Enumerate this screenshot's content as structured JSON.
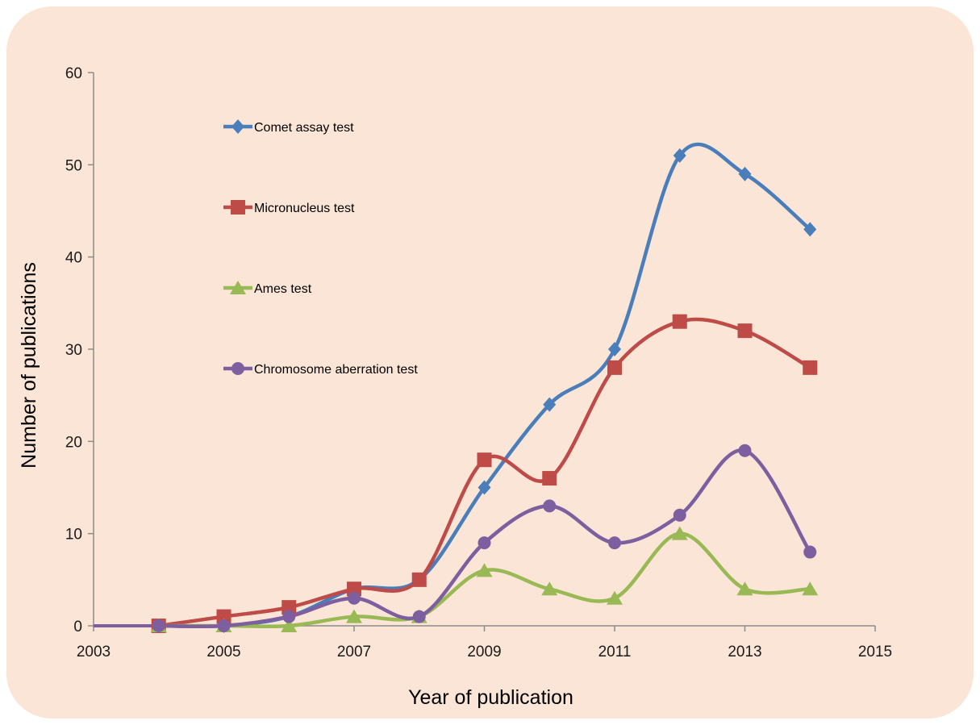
{
  "chart_data": {
    "type": "line",
    "smooth": true,
    "x": [
      2004,
      2005,
      2006,
      2007,
      2008,
      2009,
      2010,
      2011,
      2012,
      2013,
      2014
    ],
    "series": [
      {
        "name": "Comet assay test",
        "color": "#4a7ebb",
        "marker": "diamond",
        "values": [
          0,
          0,
          1,
          4,
          5,
          15,
          24,
          30,
          51,
          49,
          43
        ]
      },
      {
        "name": "Micronucleus test",
        "color": "#be4b48",
        "marker": "square",
        "values": [
          0,
          1,
          2,
          4,
          5,
          18,
          16,
          28,
          33,
          32,
          28
        ]
      },
      {
        "name": "Ames test",
        "color": "#98b954",
        "marker": "triangle",
        "values": [
          0,
          0,
          0,
          1,
          1,
          6,
          4,
          3,
          10,
          4,
          4
        ]
      },
      {
        "name": "Chromosome aberration test",
        "color": "#7d5fa0",
        "marker": "circle",
        "values": [
          0,
          0,
          1,
          3,
          1,
          9,
          13,
          9,
          12,
          19,
          8
        ]
      }
    ],
    "xlabel": "Year of publication",
    "ylabel": "Number of publications",
    "xlim": [
      2003,
      2015
    ],
    "ylim": [
      0,
      60
    ],
    "xticks": [
      2003,
      2005,
      2007,
      2009,
      2011,
      2013,
      2015
    ],
    "yticks": [
      0,
      10,
      20,
      30,
      40,
      50,
      60
    ],
    "grid": false,
    "legend_position": "top-left"
  }
}
